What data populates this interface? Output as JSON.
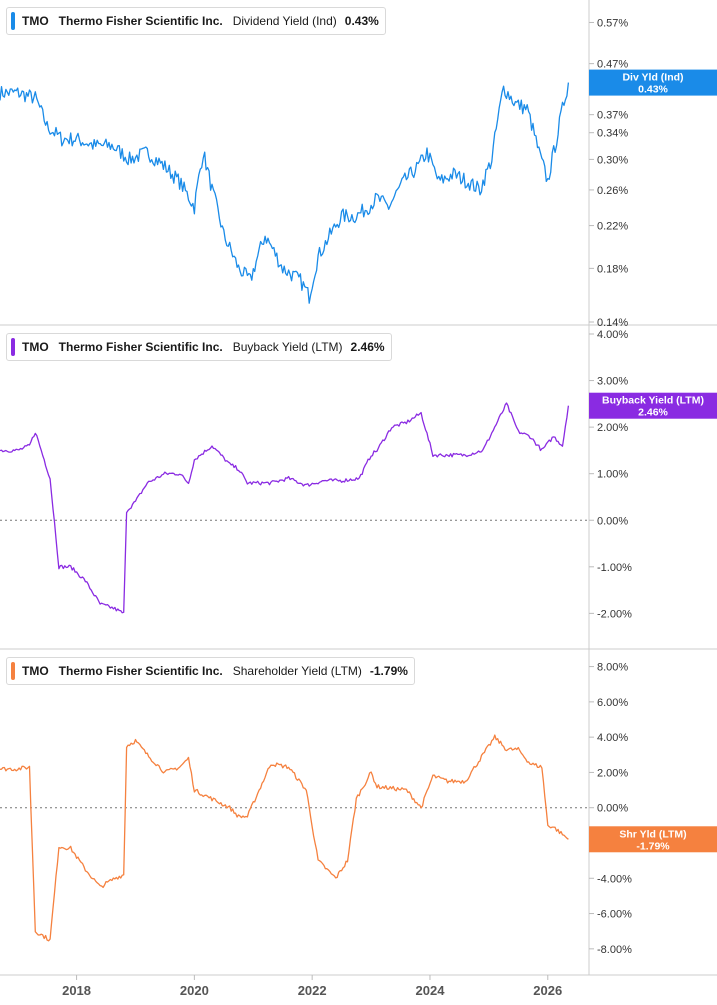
{
  "ticker": "TMO",
  "company": "Thermo Fisher Scientific Inc.",
  "panels": [
    {
      "metric": "Dividend Yield (Ind)",
      "value": "0.43%",
      "color": "#1a8be8",
      "tag_line1": "Div Yld (Ind)",
      "tag_line2": "0.43%"
    },
    {
      "metric": "Buyback Yield (LTM)",
      "value": "2.46%",
      "color": "#8a2be2",
      "tag_line1": "Buyback Yield (LTM)",
      "tag_line2": "2.46%"
    },
    {
      "metric": "Shareholder Yield (LTM)",
      "value": "-1.79%",
      "color": "#f5813f",
      "tag_line1": "Shr Yld (LTM)",
      "tag_line2": "-1.79%"
    }
  ],
  "chart_data": [
    {
      "type": "line",
      "title": "TMO Thermo Fisher Scientific Inc. Dividend Yield (Ind) 0.43%",
      "scale": "log",
      "ylim": [
        0.14,
        0.61
      ],
      "yticks": [
        0.14,
        0.18,
        0.22,
        0.26,
        0.3,
        0.34,
        0.37,
        0.47,
        0.57
      ],
      "ytick_labels": [
        "0.14%",
        "0.18%",
        "0.22%",
        "0.26%",
        "0.30%",
        "0.34%",
        "0.37%",
        "0.47%",
        "0.57%"
      ],
      "x": [
        2016.7,
        2017.0,
        2017.3,
        2017.5,
        2017.75,
        2018.0,
        2018.3,
        2018.6,
        2018.9,
        2019.2,
        2019.5,
        2019.75,
        2020.0,
        2020.15,
        2020.3,
        2020.5,
        2020.75,
        2020.95,
        2021.2,
        2021.5,
        2021.8,
        2021.95,
        2022.1,
        2022.3,
        2022.5,
        2022.75,
        2022.95,
        2023.1,
        2023.3,
        2023.55,
        2023.8,
        2023.95,
        2024.15,
        2024.4,
        2024.65,
        2024.85,
        2025.05,
        2025.25,
        2025.45,
        2025.65,
        2025.85,
        2026.0,
        2026.15,
        2026.35
      ],
      "series": [
        {
          "values": [
            0.41,
            0.41,
            0.4,
            0.35,
            0.33,
            0.33,
            0.32,
            0.32,
            0.3,
            0.31,
            0.29,
            0.27,
            0.24,
            0.31,
            0.26,
            0.21,
            0.18,
            0.17,
            0.21,
            0.18,
            0.17,
            0.158,
            0.19,
            0.21,
            0.23,
            0.23,
            0.24,
            0.25,
            0.24,
            0.27,
            0.29,
            0.31,
            0.27,
            0.28,
            0.27,
            0.26,
            0.3,
            0.42,
            0.39,
            0.38,
            0.31,
            0.27,
            0.33,
            0.43
          ]
        }
      ],
      "grid": false
    },
    {
      "type": "line",
      "title": "TMO Thermo Fisher Scientific Inc. Buyback Yield (LTM) 2.46%",
      "ylim": [
        -2.4,
        4.0
      ],
      "yticks": [
        -2,
        -1,
        0,
        1,
        2,
        3,
        4
      ],
      "ytick_labels": [
        "-2.00%",
        "-1.00%",
        "0.00%",
        "1.00%",
        "2.00%",
        "3.00%",
        "4.00%"
      ],
      "x": [
        2016.7,
        2017.0,
        2017.2,
        2017.3,
        2017.55,
        2017.7,
        2017.9,
        2018.15,
        2018.4,
        2018.65,
        2018.8,
        2018.85,
        2019.0,
        2019.2,
        2019.5,
        2019.75,
        2019.9,
        2020.0,
        2020.3,
        2020.6,
        2020.75,
        2020.9,
        2021.3,
        2021.6,
        2021.9,
        2022.2,
        2022.5,
        2022.8,
        2023.0,
        2023.1,
        2023.35,
        2023.6,
        2023.85,
        2024.05,
        2024.3,
        2024.6,
        2024.9,
        2025.1,
        2025.3,
        2025.5,
        2025.7,
        2025.9,
        2026.1,
        2026.25,
        2026.35
      ],
      "series": [
        {
          "values": [
            1.5,
            1.5,
            1.6,
            1.9,
            0.9,
            -1.0,
            -1.0,
            -1.3,
            -1.8,
            -1.9,
            -2.0,
            0.2,
            0.4,
            0.8,
            1.0,
            1.0,
            0.8,
            1.3,
            1.6,
            1.2,
            1.1,
            0.8,
            0.8,
            0.9,
            0.75,
            0.85,
            0.85,
            0.9,
            1.4,
            1.5,
            2.0,
            2.1,
            2.3,
            1.4,
            1.4,
            1.4,
            1.5,
            2.0,
            2.5,
            1.9,
            1.8,
            1.5,
            1.8,
            1.6,
            2.46
          ]
        }
      ],
      "grid": false
    },
    {
      "type": "line",
      "title": "TMO Thermo Fisher Scientific Inc. Shareholder Yield (LTM) -1.79%",
      "ylim": [
        -9.2,
        8.6
      ],
      "yticks": [
        -8,
        -6,
        -4,
        -2,
        0,
        2,
        4,
        6,
        8
      ],
      "ytick_labels": [
        "-8.00%",
        "-6.00%",
        "-4.00%",
        "-2.00%",
        "0.00%",
        "2.00%",
        "4.00%",
        "6.00%",
        "8.00%"
      ],
      "x": [
        2016.7,
        2017.0,
        2017.2,
        2017.3,
        2017.55,
        2017.7,
        2017.9,
        2018.15,
        2018.4,
        2018.65,
        2018.8,
        2018.85,
        2019.0,
        2019.2,
        2019.5,
        2019.75,
        2019.9,
        2020.0,
        2020.3,
        2020.6,
        2020.75,
        2020.9,
        2021.3,
        2021.6,
        2021.9,
        2022.1,
        2022.4,
        2022.6,
        2022.75,
        2023.0,
        2023.1,
        2023.35,
        2023.6,
        2023.85,
        2024.05,
        2024.3,
        2024.6,
        2024.9,
        2025.1,
        2025.3,
        2025.5,
        2025.7,
        2025.9,
        2026.0,
        2026.1,
        2026.35
      ],
      "series": [
        {
          "values": [
            2.2,
            2.2,
            2.3,
            -7.0,
            -7.5,
            -2.2,
            -2.3,
            -3.5,
            -4.5,
            -4.0,
            -3.8,
            3.5,
            3.8,
            3.0,
            2.0,
            2.3,
            2.8,
            1.0,
            0.5,
            0.0,
            -0.5,
            -0.5,
            2.5,
            2.3,
            1.0,
            -3.0,
            -4.0,
            -3.0,
            0.5,
            2.0,
            1.2,
            1.1,
            1.0,
            0.0,
            1.8,
            1.5,
            1.5,
            3.0,
            4.0,
            3.3,
            3.3,
            2.5,
            2.3,
            -1.0,
            -1.1,
            -1.79
          ]
        }
      ],
      "reference_line": 0,
      "grid": false
    }
  ],
  "x_axis": {
    "ticks": [
      2018,
      2020,
      2022,
      2024,
      2026
    ],
    "tick_labels": [
      "2018",
      "2020",
      "2022",
      "2024",
      "2026"
    ],
    "range": [
      2016.7,
      2026.7
    ]
  }
}
